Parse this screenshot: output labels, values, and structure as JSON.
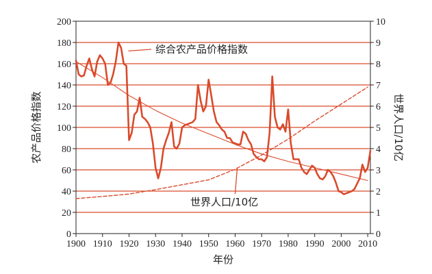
{
  "chart_data": {
    "type": "line",
    "xlabel": "年份",
    "ylabel_left": "农产品价格指数",
    "ylabel_right": "世界人口/10亿",
    "xlim": [
      1900,
      2011
    ],
    "ylim_left": [
      0,
      200
    ],
    "ylim_right": [
      0,
      10
    ],
    "x_ticks": [
      1900,
      1910,
      1920,
      1930,
      1940,
      1950,
      1960,
      1970,
      1980,
      1990,
      2000,
      2010
    ],
    "y_ticks_left": [
      0,
      20,
      40,
      60,
      80,
      100,
      120,
      140,
      160,
      180,
      200
    ],
    "y_ticks_right": [
      0,
      1,
      2,
      3,
      4,
      5,
      6,
      7,
      8,
      9,
      10
    ],
    "grid": true,
    "colors": {
      "accent": "#d94a2b",
      "axis": "#222222",
      "text": "#222222"
    },
    "annotations": [
      {
        "text": "综合农产品价格指数",
        "series": "price_index",
        "x": 1919,
        "y": 172
      },
      {
        "text": "世界人口/10亿",
        "series": "population",
        "x": 1960,
        "y": 46
      }
    ],
    "series": [
      {
        "key": "price_index",
        "axis": "left",
        "style": "solid",
        "x": [
          1900,
          1901,
          1902,
          1903,
          1904,
          1905,
          1906,
          1907,
          1908,
          1909,
          1910,
          1911,
          1912,
          1913,
          1914,
          1915,
          1916,
          1917,
          1918,
          1919,
          1920,
          1921,
          1922,
          1923,
          1924,
          1925,
          1926,
          1927,
          1928,
          1929,
          1930,
          1931,
          1932,
          1933,
          1934,
          1935,
          1936,
          1937,
          1938,
          1939,
          1940,
          1941,
          1942,
          1943,
          1944,
          1945,
          1946,
          1947,
          1948,
          1949,
          1950,
          1951,
          1952,
          1953,
          1954,
          1955,
          1956,
          1957,
          1958,
          1959,
          1960,
          1961,
          1962,
          1963,
          1964,
          1965,
          1966,
          1967,
          1968,
          1969,
          1970,
          1971,
          1972,
          1973,
          1974,
          1975,
          1976,
          1977,
          1978,
          1979,
          1980,
          1981,
          1982,
          1983,
          1984,
          1985,
          1986,
          1987,
          1988,
          1989,
          1990,
          1991,
          1992,
          1993,
          1994,
          1995,
          1996,
          1997,
          1998,
          1999,
          2000,
          2001,
          2002,
          2003,
          2004,
          2005,
          2006,
          2007,
          2008,
          2009,
          2010,
          2011
        ],
        "values": [
          163,
          150,
          148,
          149,
          158,
          165,
          155,
          148,
          162,
          168,
          165,
          160,
          140,
          142,
          150,
          162,
          180,
          175,
          160,
          158,
          88,
          95,
          112,
          115,
          128,
          110,
          108,
          105,
          100,
          85,
          62,
          52,
          62,
          80,
          88,
          95,
          105,
          82,
          80,
          85,
          100,
          102,
          103,
          104,
          105,
          108,
          140,
          125,
          115,
          120,
          145,
          130,
          115,
          105,
          102,
          98,
          96,
          90,
          90,
          86,
          85,
          84,
          84,
          96,
          94,
          88,
          84,
          75,
          72,
          70,
          70,
          68,
          72,
          95,
          148,
          110,
          100,
          98,
          103,
          96,
          117,
          85,
          70,
          70,
          70,
          62,
          58,
          56,
          60,
          64,
          62,
          56,
          52,
          51,
          54,
          60,
          58,
          54,
          48,
          40,
          39,
          37,
          38,
          39,
          40,
          42,
          47,
          52,
          65,
          58,
          62,
          78
        ]
      },
      {
        "key": "price_trend",
        "axis": "left",
        "style": "thin",
        "x": [
          1900,
          1910,
          1920,
          1930,
          1940,
          1950,
          1960,
          1970,
          1980,
          1990,
          2000,
          2010
        ],
        "values": [
          162,
          147,
          130,
          116,
          104,
          94,
          84,
          75,
          68,
          62,
          56,
          50
        ]
      },
      {
        "key": "population",
        "axis": "right",
        "style": "dashed",
        "x": [
          1900,
          1910,
          1920,
          1930,
          1940,
          1950,
          1960,
          1970,
          1980,
          1990,
          2000,
          2010
        ],
        "values": [
          1.65,
          1.75,
          1.86,
          2.07,
          2.3,
          2.53,
          3.03,
          3.7,
          4.45,
          5.3,
          6.1,
          6.9
        ]
      }
    ]
  }
}
